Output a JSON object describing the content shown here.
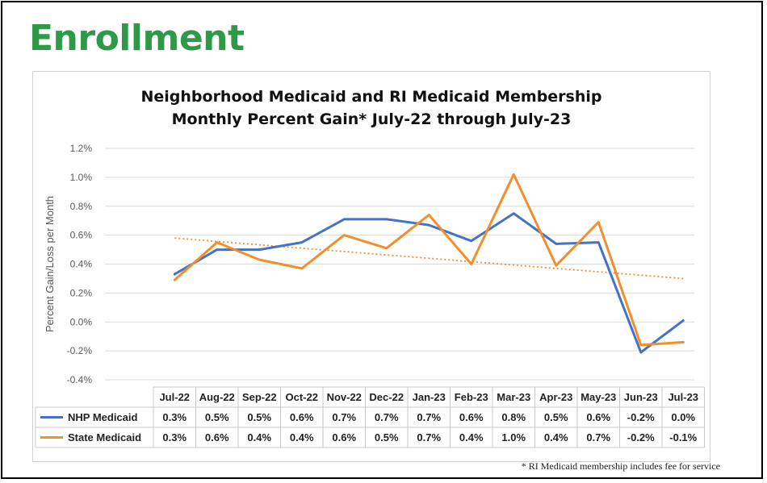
{
  "page": {
    "title": "Enrollment",
    "footnote": "* RI Medicaid membership includes fee for service"
  },
  "chart_data": {
    "type": "line",
    "title_line1": "Neighborhood Medicaid and RI Medicaid Membership",
    "title_line2": "Monthly Percent Gain* July-22 through July-23",
    "ylabel": "Percent Gain/Loss per Month",
    "xlabel": "",
    "ylim": [
      -0.4,
      1.2
    ],
    "yticks": [
      "1.2%",
      "1.0%",
      "0.8%",
      "0.6%",
      "0.4%",
      "0.2%",
      "0.0%",
      "-0.2%",
      "-0.4%"
    ],
    "ytick_values": [
      1.2,
      1.0,
      0.8,
      0.6,
      0.4,
      0.2,
      0.0,
      -0.2,
      -0.4
    ],
    "grid": true,
    "legend": "data-table",
    "categories": [
      "Jul-22",
      "Aug-22",
      "Sep-22",
      "Oct-22",
      "Nov-22",
      "Dec-22",
      "Jan-23",
      "Feb-23",
      "Mar-23",
      "Apr-23",
      "May-23",
      "Jun-23",
      "Jul-23"
    ],
    "series": [
      {
        "name": "NHP Medicaid",
        "color": "#4472c4",
        "values": [
          0.33,
          0.5,
          0.5,
          0.55,
          0.71,
          0.71,
          0.67,
          0.56,
          0.75,
          0.54,
          0.55,
          -0.21,
          0.01
        ],
        "table_labels": [
          "0.3%",
          "0.5%",
          "0.5%",
          "0.6%",
          "0.7%",
          "0.7%",
          "0.7%",
          "0.6%",
          "0.8%",
          "0.5%",
          "0.6%",
          "-0.2%",
          "0.0%"
        ]
      },
      {
        "name": "State Medicaid",
        "color": "#f28e2b",
        "values": [
          0.29,
          0.55,
          0.43,
          0.37,
          0.6,
          0.51,
          0.74,
          0.4,
          1.02,
          0.39,
          0.69,
          -0.16,
          -0.14
        ],
        "table_labels": [
          "0.3%",
          "0.6%",
          "0.4%",
          "0.4%",
          "0.6%",
          "0.5%",
          "0.7%",
          "0.4%",
          "1.0%",
          "0.4%",
          "0.7%",
          "-0.2%",
          "-0.1%"
        ]
      }
    ],
    "trendline": {
      "series": "State Medicaid",
      "style": "dotted",
      "color": "#f28e2b",
      "start": 0.58,
      "end": 0.3
    }
  }
}
